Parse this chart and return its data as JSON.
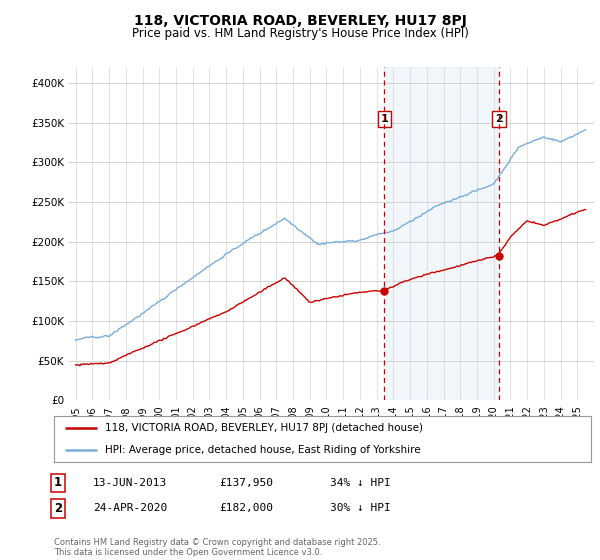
{
  "title1": "118, VICTORIA ROAD, BEVERLEY, HU17 8PJ",
  "title2": "Price paid vs. HM Land Registry's House Price Index (HPI)",
  "legend_house": "118, VICTORIA ROAD, BEVERLEY, HU17 8PJ (detached house)",
  "legend_hpi": "HPI: Average price, detached house, East Riding of Yorkshire",
  "annotation1_date": "13-JUN-2013",
  "annotation1_price": "£137,950",
  "annotation1_hpi": "34% ↓ HPI",
  "annotation2_date": "24-APR-2020",
  "annotation2_price": "£182,000",
  "annotation2_hpi": "30% ↓ HPI",
  "footer": "Contains HM Land Registry data © Crown copyright and database right 2025.\nThis data is licensed under the Open Government Licence v3.0.",
  "house_color": "#cc0000",
  "hpi_color": "#7aaddb",
  "hpi_fill_color": "#d6e8f5",
  "vline_color": "#cc0000",
  "background_color": "#ffffff",
  "plot_bg_color": "#ffffff",
  "ylim": [
    0,
    420000
  ],
  "yticks": [
    0,
    50000,
    100000,
    150000,
    200000,
    250000,
    300000,
    350000,
    400000
  ],
  "ytick_labels": [
    "£0",
    "£50K",
    "£100K",
    "£150K",
    "£200K",
    "£250K",
    "£300K",
    "£350K",
    "£400K"
  ],
  "sale1_year": 2013.45,
  "sale2_year": 2020.31,
  "sale1_price": 137950,
  "sale2_price": 182000
}
